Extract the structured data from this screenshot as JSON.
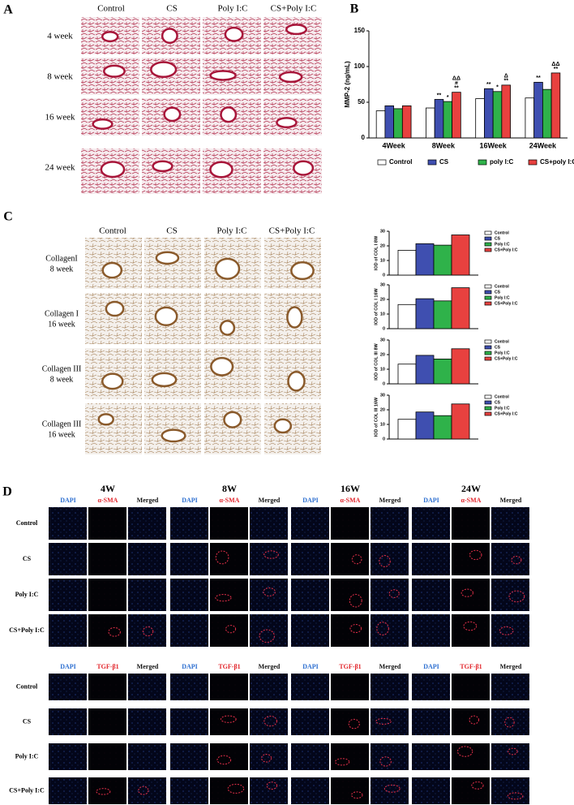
{
  "panel_a": {
    "label": "A",
    "columns": [
      "Control",
      "CS",
      "Poly I:C",
      "CS+Poly I:C"
    ],
    "rows": [
      "4 week",
      "8 week",
      "16 week",
      "24 week"
    ]
  },
  "panel_b": {
    "label": "B"
  },
  "panel_c": {
    "label": "C",
    "columns": [
      "Control",
      "CS",
      "Poly I:C",
      "CS+Poly I:C"
    ],
    "rows": [
      [
        "CollagenI",
        "8 week"
      ],
      [
        "Collagen I",
        "16 week"
      ],
      [
        "Collagen III",
        "8 week"
      ],
      [
        "Collagen III",
        "16 week"
      ]
    ]
  },
  "panel_d": {
    "label": "D",
    "time_points": [
      "4W",
      "8W",
      "16W",
      "24W"
    ],
    "blocks": [
      {
        "channels": [
          "DAPI",
          "α-SMA",
          "Merged"
        ]
      },
      {
        "channels": [
          "DAPI",
          "TGF-β1",
          "Merged"
        ]
      }
    ],
    "rows": [
      "Control",
      "CS",
      "Poly I:C",
      "CS+Poly I:C"
    ]
  },
  "chart_data": [
    {
      "type": "bar",
      "y_label": "MMP-2 (ng/mL)",
      "categories": [
        "4Week",
        "8Week",
        "16Week",
        "24Week"
      ],
      "ylim": [
        0,
        150
      ],
      "yticks": [
        0,
        50,
        100,
        150
      ],
      "legend": "bottom",
      "series": [
        {
          "name": "Control",
          "color": "#ffffff",
          "values": [
            38,
            42,
            55,
            56
          ],
          "annotations": [
            null,
            null,
            null,
            null
          ]
        },
        {
          "name": "CS",
          "color": "#3f4fb0",
          "values": [
            45,
            54,
            69,
            78
          ],
          "annotations": [
            null,
            [
              "**"
            ],
            [
              "**"
            ],
            [
              "**"
            ]
          ]
        },
        {
          "name": "poly I:C",
          "color": "#2fb24a",
          "values": [
            41,
            51,
            65,
            68
          ],
          "annotations": [
            null,
            [
              "*"
            ],
            [
              "*"
            ],
            null
          ]
        },
        {
          "name": "CS+poly I:C",
          "color": "#e8413f",
          "values": [
            45,
            64,
            74,
            91
          ],
          "annotations": [
            null,
            [
              "ΔΔ",
              "#",
              "**"
            ],
            [
              "Δ",
              "**"
            ],
            [
              "ΔΔ",
              "**"
            ]
          ]
        }
      ]
    },
    {
      "type": "bar",
      "y_label": "IOD of COL I 8W",
      "categories": [
        null
      ],
      "ylim": [
        0,
        30
      ],
      "yticks": [
        0,
        10,
        20,
        30
      ],
      "legend": "right",
      "series": [
        {
          "name": "Control",
          "color": "#ffffff",
          "values": [
            17
          ]
        },
        {
          "name": "CS",
          "color": "#3f4fb0",
          "values": [
            21.5
          ]
        },
        {
          "name": "Poly I:C",
          "color": "#2fb24a",
          "values": [
            20.5
          ]
        },
        {
          "name": "CS+Poly I:C",
          "color": "#e8413f",
          "values": [
            27.5
          ]
        }
      ]
    },
    {
      "type": "bar",
      "y_label": "IOD of COL I 16W",
      "categories": [
        null
      ],
      "ylim": [
        0,
        30
      ],
      "yticks": [
        0,
        10,
        20,
        30
      ],
      "legend": "right",
      "series": [
        {
          "name": "Control",
          "color": "#ffffff",
          "values": [
            16.5
          ]
        },
        {
          "name": "CS",
          "color": "#3f4fb0",
          "values": [
            20.5
          ]
        },
        {
          "name": "Poly I:C",
          "color": "#2fb24a",
          "values": [
            19
          ]
        },
        {
          "name": "CS+Poly I:C",
          "color": "#e8413f",
          "values": [
            28
          ]
        }
      ]
    },
    {
      "type": "bar",
      "y_label": "IOD of COL III 8W",
      "categories": [
        null
      ],
      "ylim": [
        0,
        30
      ],
      "yticks": [
        0,
        10,
        20,
        30
      ],
      "legend": "right",
      "series": [
        {
          "name": "Control",
          "color": "#ffffff",
          "values": [
            13.5
          ]
        },
        {
          "name": "CS",
          "color": "#3f4fb0",
          "values": [
            19.5
          ]
        },
        {
          "name": "Poly I:C",
          "color": "#2fb24a",
          "values": [
            17
          ]
        },
        {
          "name": "CS+Poly I:C",
          "color": "#e8413f",
          "values": [
            24
          ]
        }
      ]
    },
    {
      "type": "bar",
      "y_label": "IOD of COL III 16W",
      "categories": [
        null
      ],
      "ylim": [
        0,
        30
      ],
      "yticks": [
        0,
        10,
        20,
        30
      ],
      "legend": "right",
      "series": [
        {
          "name": "Control",
          "color": "#ffffff",
          "values": [
            13.5
          ]
        },
        {
          "name": "CS",
          "color": "#3f4fb0",
          "values": [
            18.5
          ]
        },
        {
          "name": "Poly I:C",
          "color": "#2fb24a",
          "values": [
            16
          ]
        },
        {
          "name": "CS+Poly I:C",
          "color": "#e8413f",
          "values": [
            24
          ]
        }
      ]
    }
  ]
}
